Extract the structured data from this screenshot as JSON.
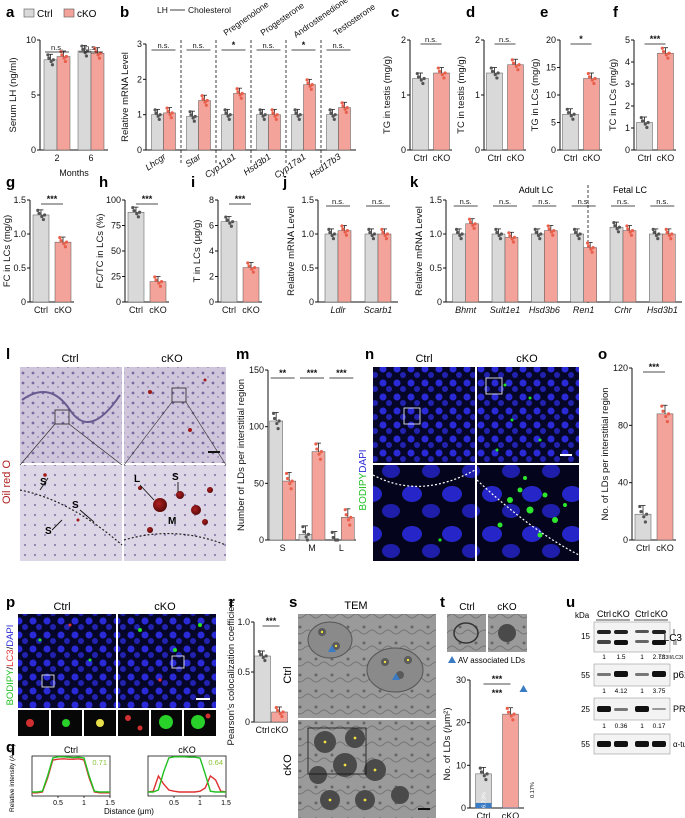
{
  "colors": {
    "ctrl": "#d9d9d9",
    "cko": "#f4a39a",
    "ctrl_dot": "#555555",
    "cko_dot": "#e8604c",
    "lc3": "#e03030",
    "bodipy": "#22c022",
    "dapi": "#2a2ad8",
    "blue_frac": "#3a7cc4",
    "teal_txt": "#1e74c8"
  },
  "legend": {
    "ctrl": "Ctrl",
    "cko": "cKO"
  },
  "panels": {
    "a": {
      "label": "a",
      "ylabel": "Serum LH (ng/ml)",
      "xlabel": "Months",
      "cats": [
        "2",
        "6"
      ],
      "sig": [
        "n.s.",
        "n.s."
      ]
    },
    "b": {
      "label": "b",
      "ylabel": "Relative mRNA Level",
      "pathway": [
        "LH",
        "Cholesterol",
        "Pregnenolone",
        "Progesterone",
        "Androstenedione",
        "Testosterone"
      ],
      "genes": [
        "Lhcgr",
        "Star",
        "Cyp11a1",
        "Hsd3b1",
        "Cyp17a1",
        "Hsd17b3"
      ],
      "sig": [
        "n.s.",
        "n.s.",
        "*",
        "n.s.",
        "*",
        "n.s."
      ]
    },
    "c": {
      "label": "c",
      "ylabel": "TG in testis (mg/g)",
      "sig": "n.s."
    },
    "d": {
      "label": "d",
      "ylabel": "TC in testis (mg/g)",
      "sig": "n.s."
    },
    "e": {
      "label": "e",
      "ylabel": "TG in LCs (mg/g)",
      "sig": "*"
    },
    "f": {
      "label": "f",
      "ylabel": "TC in LCs (mg/g)",
      "sig": "***"
    },
    "g": {
      "label": "g",
      "ylabel": "FC in LCs (mg/g)",
      "sig": "***"
    },
    "h": {
      "label": "h",
      "ylabel": "FC/TC in LCs (%)",
      "sig": "***"
    },
    "i": {
      "label": "i",
      "ylabel": "T in LCs (μg/g)",
      "sig": "***"
    },
    "j": {
      "label": "j",
      "ylabel": "Relative mRNA Level",
      "genes": [
        "Ldlr",
        "Scarb1"
      ],
      "sig": [
        "n.s.",
        "n.s."
      ]
    },
    "k": {
      "label": "k",
      "ylabel": "Relative mRNA Level",
      "groups": [
        "Adult LC",
        "Fetal LC"
      ],
      "genes": [
        "Bhmt",
        "Sult1e1",
        "Hsd3b6",
        "Ren1",
        "Crhr",
        "Hsd3b1"
      ],
      "sig": [
        "n.s.",
        "n.s.",
        "n.s.",
        "n.s.",
        "n.s.",
        "n.s."
      ]
    },
    "l": {
      "label": "l",
      "cols": [
        "Ctrl",
        "cKO"
      ],
      "side": "Oil red O",
      "marks": [
        "S",
        "S",
        "S",
        "L",
        "S",
        "M"
      ]
    },
    "m": {
      "label": "m",
      "ylabel": "Number of LDs per interstitial region",
      "cats": [
        "S",
        "M",
        "L"
      ],
      "sig": [
        "**",
        "***",
        "***"
      ]
    },
    "n": {
      "label": "n",
      "cols": [
        "Ctrl",
        "cKO"
      ],
      "side_a": "BODIPY",
      "side_b": "DAPI"
    },
    "o": {
      "label": "o",
      "ylabel": "No. of LDs per interstitial region",
      "sig": "***"
    },
    "p": {
      "label": "p",
      "cols": [
        "Ctrl",
        "cKO"
      ],
      "side_a": "BODIPY",
      "side_b": "LC3",
      "side_c": "DAPI"
    },
    "q": {
      "label": "q",
      "ylabel": "Relative intensity (A.U.)",
      "xlabel": "Distance (μm)",
      "titles": [
        "Ctrl",
        "cKO"
      ],
      "coef": [
        "0.71",
        "0.64"
      ]
    },
    "r": {
      "label": "r",
      "ylabel": "Pearson's colocalization coefficient",
      "sig": "***"
    },
    "s": {
      "label": "s",
      "title": "TEM",
      "rows": [
        "Ctrl",
        "cKO"
      ]
    },
    "t": {
      "label": "t",
      "cols": [
        "Ctrl",
        "cKO"
      ],
      "legend": "AV associated LDs",
      "ylabel": "No. of LDs (/μm²)",
      "sig_top": "***",
      "sig_blue": "***",
      "pct_ctrl": "6.73%",
      "pct_cko": "0.17%"
    },
    "u": {
      "label": "u",
      "kda": "kDa",
      "lanes": [
        "Ctrl",
        "cKO",
        "Ctrl",
        "cKO"
      ],
      "proteins": [
        "LC3",
        "p62",
        "PRDX1",
        "α-tubulin"
      ],
      "lc3_forms": [
        "I",
        "II"
      ],
      "mw": [
        "15",
        "55",
        "25",
        "55"
      ],
      "lc3_ratio": [
        "1",
        "1.5",
        "1",
        "2.73"
      ],
      "lc3_ratio_label": "LC3II/LC3I",
      "p62_ratio": [
        "1",
        "4.12",
        "1",
        "3.75"
      ],
      "prdx1_ratio": [
        "1",
        "0.36",
        "1",
        "0.17"
      ]
    }
  },
  "chart_data": [
    {
      "panel": "a",
      "type": "bar",
      "ylabel": "Serum LH (ng/ml)",
      "xlabel": "Months",
      "categories": [
        "2",
        "6"
      ],
      "ylim": [
        0,
        10
      ],
      "yticks": [
        0,
        5,
        10
      ],
      "series": [
        {
          "name": "Ctrl",
          "values": [
            8.2,
            9.0
          ]
        },
        {
          "name": "cKO",
          "values": [
            8.5,
            8.8
          ]
        }
      ]
    },
    {
      "panel": "b",
      "type": "bar",
      "ylabel": "Relative mRNA Level",
      "categories": [
        "Lhcgr",
        "Star",
        "Cyp11a1",
        "Hsd3b1",
        "Cyp17a1",
        "Hsd17b3"
      ],
      "ylim": [
        0,
        3
      ],
      "yticks": [
        0,
        1,
        2,
        3
      ],
      "series": [
        {
          "name": "Ctrl",
          "values": [
            1.0,
            0.95,
            1.0,
            1.0,
            1.0,
            1.0
          ]
        },
        {
          "name": "cKO",
          "values": [
            1.05,
            1.4,
            1.6,
            1.0,
            1.85,
            1.2
          ]
        }
      ]
    },
    {
      "panel": "c",
      "type": "bar",
      "ylabel": "TG in testis (mg/g)",
      "categories": [
        "Ctrl",
        "cKO"
      ],
      "ylim": [
        0,
        2
      ],
      "yticks": [
        0,
        1,
        2
      ],
      "values": [
        1.3,
        1.4
      ]
    },
    {
      "panel": "d",
      "type": "bar",
      "ylabel": "TC in testis (mg/g)",
      "categories": [
        "Ctrl",
        "cKO"
      ],
      "ylim": [
        0,
        2
      ],
      "yticks": [
        0,
        1,
        2
      ],
      "values": [
        1.4,
        1.55
      ]
    },
    {
      "panel": "e",
      "type": "bar",
      "ylabel": "TG in LCs (mg/g)",
      "categories": [
        "Ctrl",
        "cKO"
      ],
      "ylim": [
        0,
        20
      ],
      "yticks": [
        0,
        5,
        10,
        15,
        20
      ],
      "values": [
        6.5,
        13.0
      ]
    },
    {
      "panel": "f",
      "type": "bar",
      "ylabel": "TC in LCs (mg/g)",
      "categories": [
        "Ctrl",
        "cKO"
      ],
      "ylim": [
        0,
        5
      ],
      "yticks": [
        0,
        1,
        2,
        3,
        4,
        5
      ],
      "values": [
        1.25,
        4.4
      ]
    },
    {
      "panel": "g",
      "type": "bar",
      "ylabel": "FC in LCs (mg/g)",
      "categories": [
        "Ctrl",
        "cKO"
      ],
      "ylim": [
        0,
        1.5
      ],
      "yticks": [
        0,
        0.5,
        1.0,
        1.5
      ],
      "values": [
        1.28,
        0.88
      ]
    },
    {
      "panel": "h",
      "type": "bar",
      "ylabel": "FC/TC in LCs (%)",
      "categories": [
        "Ctrl",
        "cKO"
      ],
      "ylim": [
        0,
        100
      ],
      "yticks": [
        0,
        25,
        50,
        75,
        100
      ],
      "values": [
        88,
        20
      ]
    },
    {
      "panel": "i",
      "type": "bar",
      "ylabel": "T in LCs (μg/g)",
      "categories": [
        "Ctrl",
        "cKO"
      ],
      "ylim": [
        0,
        8
      ],
      "yticks": [
        0,
        2,
        4,
        6,
        8
      ],
      "values": [
        6.3,
        2.7
      ]
    },
    {
      "panel": "j",
      "type": "bar",
      "ylabel": "Relative mRNA Level",
      "categories": [
        "Ldlr",
        "Scarb1"
      ],
      "ylim": [
        0,
        1.5
      ],
      "yticks": [
        0,
        0.5,
        1.0,
        1.5
      ],
      "series": [
        {
          "name": "Ctrl",
          "values": [
            1.0,
            1.0
          ]
        },
        {
          "name": "cKO",
          "values": [
            1.05,
            1.0
          ]
        }
      ]
    },
    {
      "panel": "k",
      "type": "bar",
      "ylabel": "Relative mRNA Level",
      "categories": [
        "Bhmt",
        "Sult1e1",
        "Hsd3b6",
        "Ren1",
        "Crhr",
        "Hsd3b1"
      ],
      "ylim": [
        0,
        1.5
      ],
      "yticks": [
        0,
        0.5,
        1.0,
        1.5
      ],
      "series": [
        {
          "name": "Ctrl",
          "values": [
            1.0,
            1.0,
            1.0,
            1.0,
            1.1,
            1.0
          ]
        },
        {
          "name": "cKO",
          "values": [
            1.15,
            0.95,
            1.05,
            0.8,
            1.05,
            1.0
          ]
        }
      ]
    },
    {
      "panel": "m",
      "type": "bar",
      "ylabel": "Number of LDs per interstitial region",
      "categories": [
        "S",
        "M",
        "L"
      ],
      "ylim": [
        0,
        150
      ],
      "yticks": [
        0,
        50,
        100,
        150
      ],
      "series": [
        {
          "name": "Ctrl",
          "values": [
            105,
            5,
            0
          ]
        },
        {
          "name": "cKO",
          "values": [
            52,
            78,
            20
          ]
        }
      ]
    },
    {
      "panel": "o",
      "type": "bar",
      "ylabel": "No. of LDs per interstitial region",
      "categories": [
        "Ctrl",
        "cKO"
      ],
      "ylim": [
        0,
        120
      ],
      "yticks": [
        0,
        40,
        80,
        120
      ],
      "values": [
        18,
        88
      ]
    },
    {
      "panel": "r",
      "type": "bar",
      "ylabel": "Pearson's colocalization coefficient",
      "categories": [
        "Ctrl",
        "cKO"
      ],
      "ylim": [
        0,
        1.0
      ],
      "yticks": [
        0,
        0.5,
        1.0
      ],
      "values": [
        0.66,
        0.1
      ]
    },
    {
      "panel": "t",
      "type": "bar",
      "ylabel": "No. of LDs (/μm²)",
      "categories": [
        "Ctrl",
        "cKO"
      ],
      "ylim": [
        0,
        30
      ],
      "yticks": [
        0,
        10,
        20,
        30
      ],
      "values": [
        8,
        22
      ],
      "av_values": [
        6.73,
        0.17
      ]
    },
    {
      "panel": "q",
      "type": "line",
      "ylabel": "Relative intensity (A.U.)",
      "xlabel": "Distance (μm)",
      "xlim": [
        0,
        1.5
      ],
      "ylim": [
        0,
        1
      ],
      "xticks": [
        0.5,
        1,
        1.5
      ],
      "series": [
        {
          "name": "Ctrl",
          "x": [
            0,
            0.1,
            0.2,
            0.3,
            0.4,
            0.5,
            0.6,
            0.7,
            0.8,
            0.9,
            1.0,
            1.1,
            1.2,
            1.3,
            1.4,
            1.5
          ],
          "green": [
            0.1,
            0.1,
            0.12,
            0.5,
            0.95,
            0.98,
            0.98,
            0.97,
            0.96,
            0.97,
            0.95,
            0.5,
            0.12,
            0.1,
            0.1,
            0.1
          ],
          "red": [
            0.08,
            0.08,
            0.1,
            0.45,
            0.9,
            0.92,
            0.93,
            0.92,
            0.92,
            0.93,
            0.9,
            0.45,
            0.1,
            0.08,
            0.08,
            0.08
          ]
        },
        {
          "name": "cKO",
          "x": [
            0,
            0.1,
            0.2,
            0.3,
            0.4,
            0.5,
            0.6,
            0.7,
            0.8,
            0.9,
            1.0,
            1.1,
            1.2,
            1.3,
            1.4,
            1.5
          ],
          "green": [
            0.1,
            0.1,
            0.15,
            0.6,
            0.95,
            0.98,
            0.98,
            0.98,
            0.97,
            0.97,
            0.95,
            0.55,
            0.12,
            0.1,
            0.1,
            0.1
          ],
          "red": [
            0.1,
            0.12,
            0.5,
            0.3,
            0.15,
            0.12,
            0.1,
            0.1,
            0.1,
            0.1,
            0.12,
            0.2,
            0.5,
            0.4,
            0.12,
            0.1
          ]
        }
      ]
    }
  ]
}
